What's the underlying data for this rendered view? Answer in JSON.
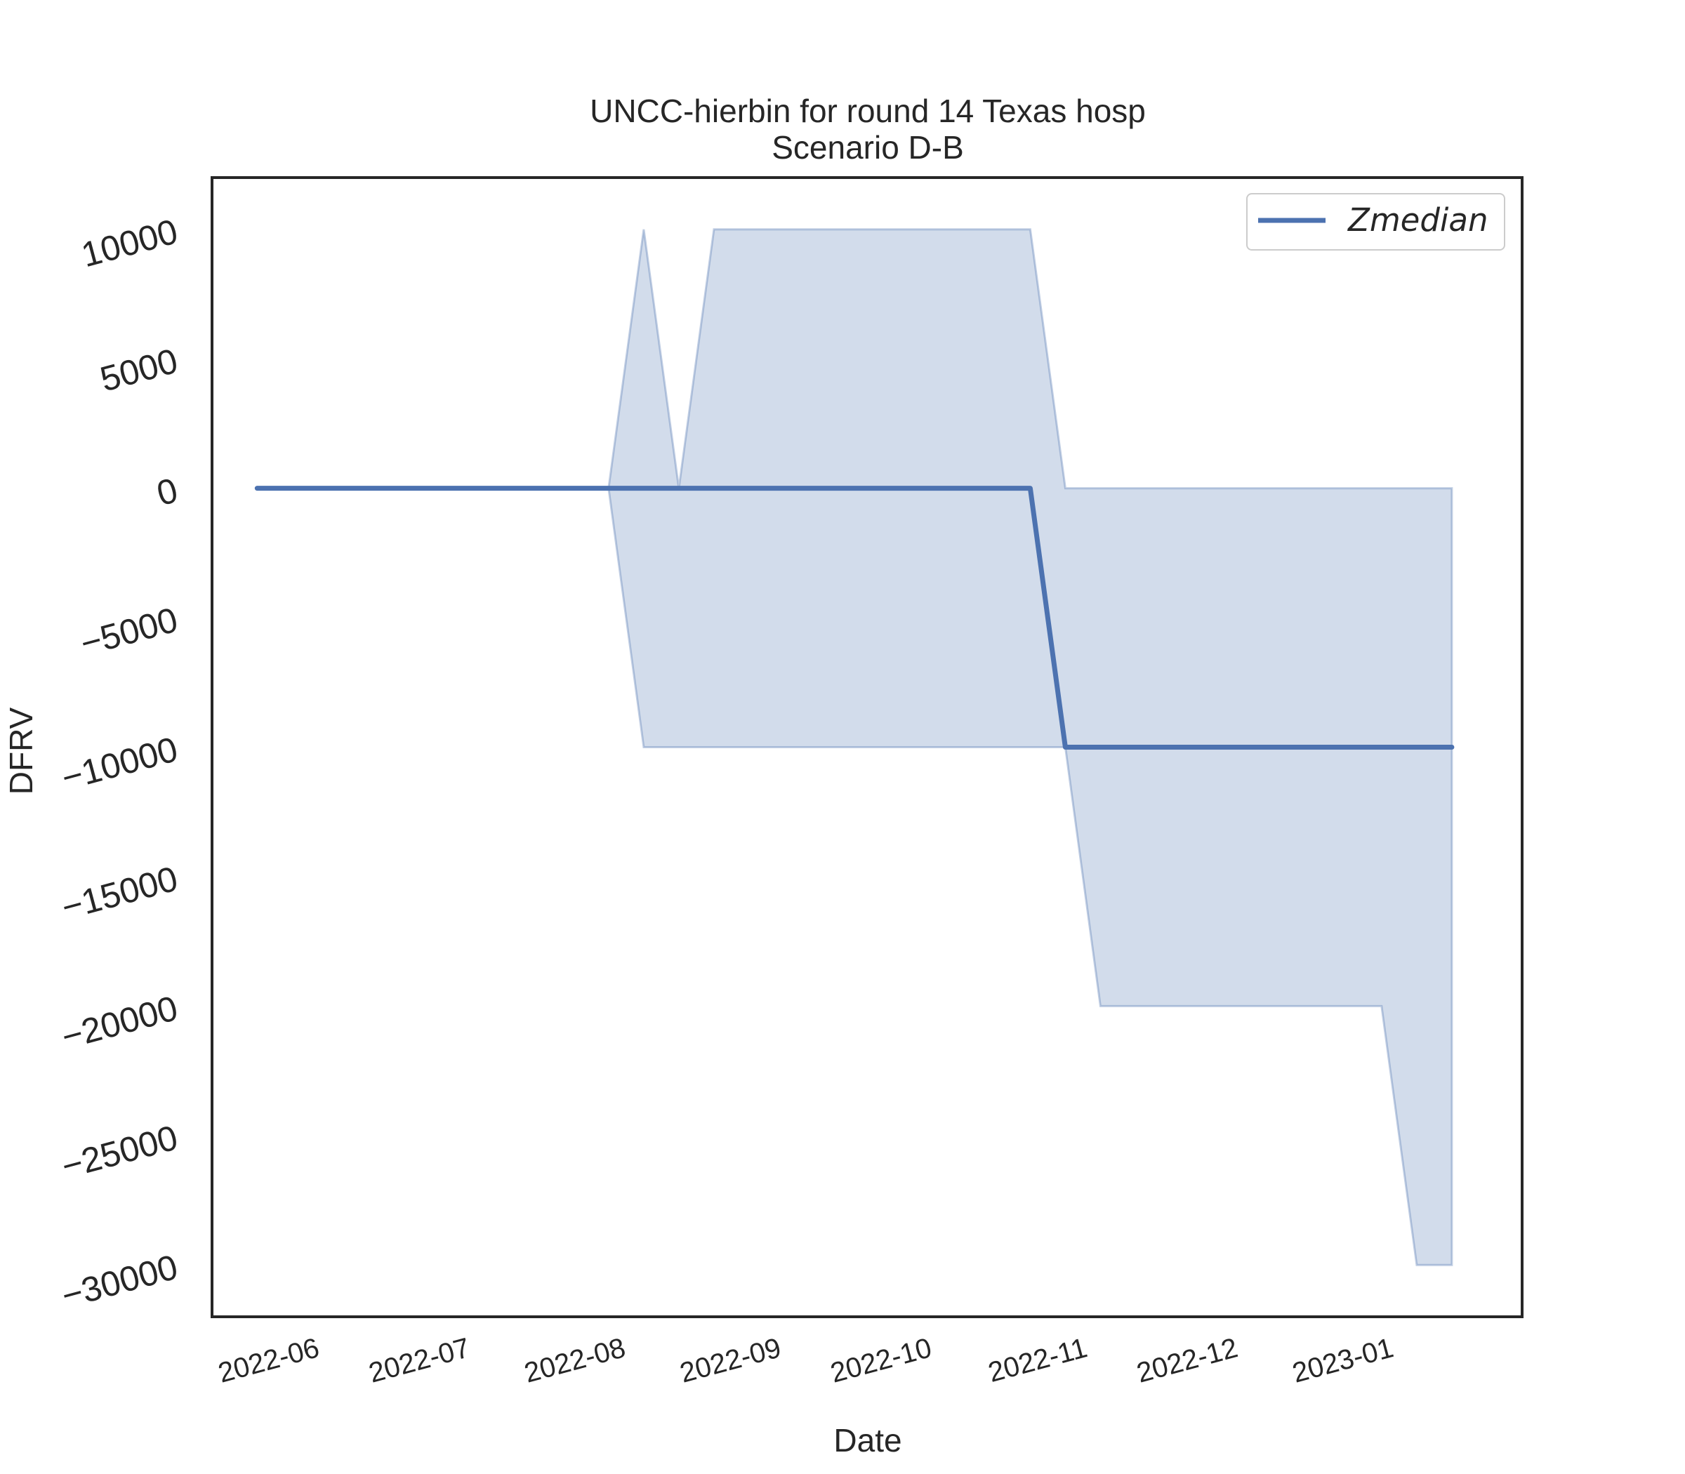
{
  "chart_data": {
    "type": "line",
    "title": "UNCC-hierbin for round 14 Texas hosp",
    "subtitle": "Scenario D-B",
    "xlabel": "Date",
    "ylabel": "DFRV",
    "xlim": [
      "2022-05-12",
      "2023-01-28"
    ],
    "ylim": [
      -32000,
      12000
    ],
    "yticks": [
      10000,
      5000,
      0,
      -5000,
      -10000,
      -15000,
      -20000,
      -25000,
      -30000
    ],
    "ytick_labels": [
      "10000",
      "5000",
      "0",
      "−5000",
      "−10000",
      "−15000",
      "−20000",
      "−25000",
      "−30000"
    ],
    "xticks": [
      "2022-06-01",
      "2022-07-01",
      "2022-08-01",
      "2022-09-01",
      "2022-10-01",
      "2022-11-01",
      "2022-12-01",
      "2023-01-01"
    ],
    "xtick_labels": [
      "2022-06",
      "2022-07",
      "2022-08",
      "2022-09",
      "2022-10",
      "2022-11",
      "2022-12",
      "2023-01"
    ],
    "grid": false,
    "legend_position": "top-right",
    "series": [
      {
        "name": "Zmedian",
        "color": "#4c72b0",
        "x": [
          "2022-05-21",
          "2022-07-30",
          "2022-10-22",
          "2022-10-29",
          "2023-01-14"
        ],
        "values": [
          0,
          0,
          0,
          -10000,
          -10000
        ]
      }
    ],
    "band": {
      "color": "#4c72b0",
      "opacity": 0.25,
      "x": [
        "2022-07-30",
        "2022-08-06",
        "2022-08-13",
        "2022-08-20",
        "2022-10-22",
        "2022-10-29",
        "2022-11-05",
        "2022-12-31",
        "2023-01-07",
        "2023-01-14"
      ],
      "upper": [
        0,
        10000,
        0,
        10000,
        10000,
        0,
        0,
        0,
        0,
        0
      ],
      "lower": [
        0,
        -10000,
        -10000,
        -10000,
        -10000,
        -10000,
        -20000,
        -20000,
        -30000,
        -30000
      ]
    }
  }
}
